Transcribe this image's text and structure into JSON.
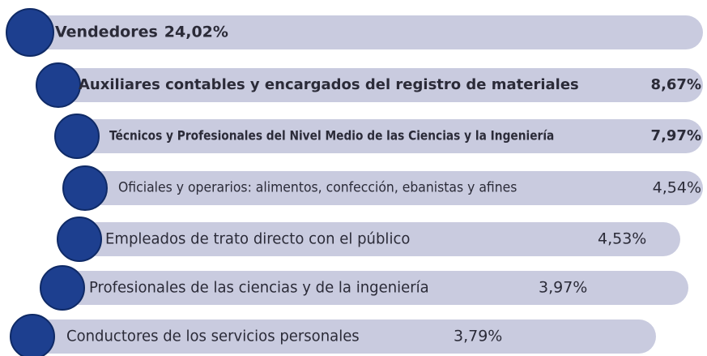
{
  "items": [
    {
      "label": "Vendedores",
      "value": "24,02%"
    },
    {
      "label": "Auxiliares contables y encargados del registro de materiales",
      "value": "8,67%"
    },
    {
      "label": "Técnicos y Profesionales del Nivel Medio de las Ciencias y la Ingeniería",
      "value": "7,97%"
    },
    {
      "label": "Oficiales y operarios: alimentos, confección, ebanistas y afines",
      "value": "4,54%"
    },
    {
      "label": "Empleados de trato directo con el público",
      "value": "4,53%"
    },
    {
      "label": "Profesionales de las ciencias y de la ingeniería",
      "value": "3,97%"
    },
    {
      "label": "Conductores de los servicios personales",
      "value": "3,79%"
    }
  ]
}
